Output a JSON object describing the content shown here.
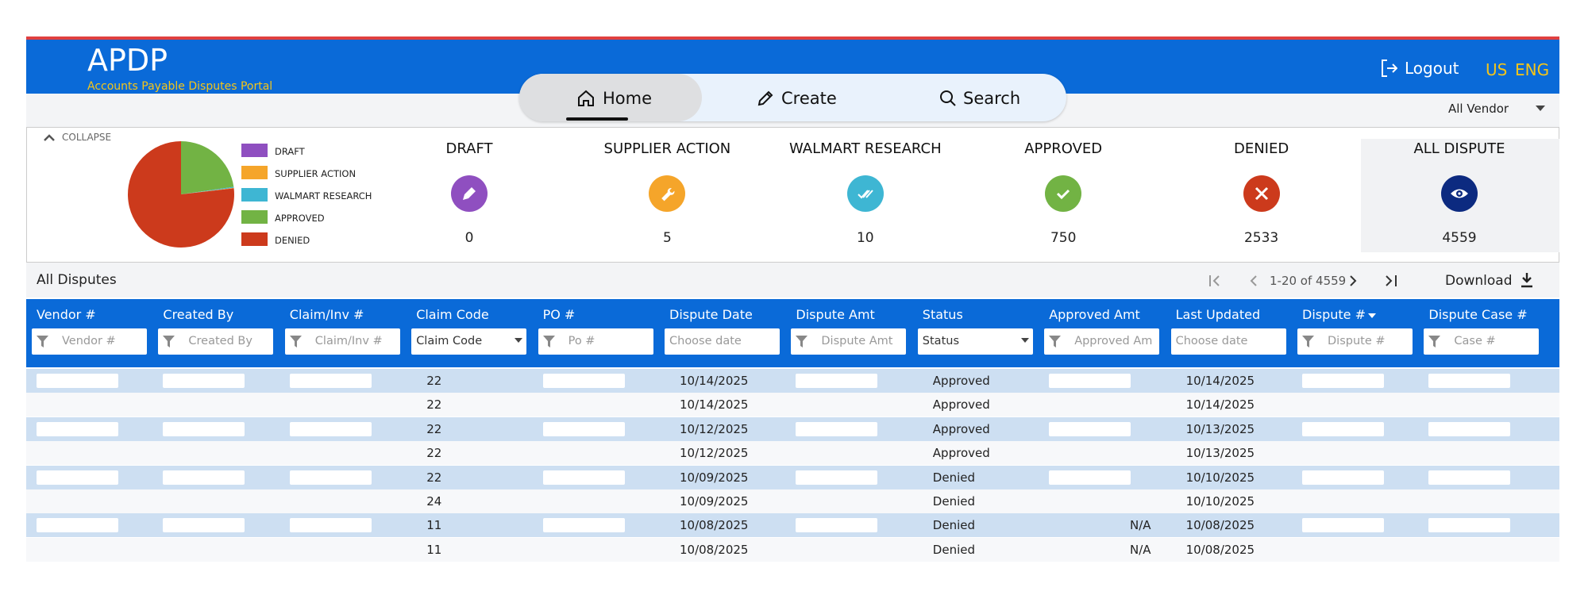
{
  "header": {
    "title": "APDP",
    "subtitle": "Accounts Payable Disputes Portal",
    "logout": "Logout",
    "region": "US",
    "language": "ENG"
  },
  "nav": [
    "Home",
    "Create",
    "Search"
  ],
  "vendor_select": "All Vendor",
  "summary": {
    "collapse": "COLLAPSE",
    "statuses": [
      {
        "label": "DRAFT",
        "count": 0,
        "color": "#8f4fc0"
      },
      {
        "label": "SUPPLIER ACTION",
        "count": 5,
        "color": "#f5a52a"
      },
      {
        "label": "WALMART RESEARCH",
        "count": 10,
        "color": "#3eb6d3"
      },
      {
        "label": "APPROVED",
        "count": 750,
        "color": "#72b344"
      },
      {
        "label": "DENIED",
        "count": 2533,
        "color": "#cc3a1c"
      },
      {
        "label": "ALL DISPUTE",
        "count": 4559,
        "color": "#0c2a80"
      }
    ]
  },
  "table": {
    "title": "All Disputes",
    "pagination": "1-20 of 4559",
    "download": "Download",
    "columns": [
      {
        "label": "Vendor #",
        "placeholder": "Vendor #"
      },
      {
        "label": "Created By",
        "placeholder": "Created By"
      },
      {
        "label": "Claim/Inv #",
        "placeholder": "Claim/Inv #"
      },
      {
        "label": "Claim Code",
        "placeholder": "Claim Code"
      },
      {
        "label": "PO #",
        "placeholder": "Po #"
      },
      {
        "label": "Dispute Date",
        "placeholder": "Choose date"
      },
      {
        "label": "Dispute Amt",
        "placeholder": "Dispute Amt"
      },
      {
        "label": "Status",
        "placeholder": "Status"
      },
      {
        "label": "Approved Amt",
        "placeholder": "Approved Am"
      },
      {
        "label": "Last Updated",
        "placeholder": "Choose date"
      },
      {
        "label": "Dispute #",
        "placeholder": "Dispute #"
      },
      {
        "label": "Dispute Case #",
        "placeholder": "Case #"
      }
    ],
    "rows": [
      [
        null,
        null,
        null,
        "22",
        null,
        "10/14/2025",
        null,
        "Approved",
        null,
        "10/14/2025",
        null,
        null
      ],
      [
        null,
        null,
        null,
        "22",
        null,
        "10/14/2025",
        null,
        "Approved",
        null,
        "10/14/2025",
        null,
        null
      ],
      [
        null,
        null,
        null,
        "22",
        null,
        "10/12/2025",
        null,
        "Approved",
        null,
        "10/13/2025",
        null,
        null
      ],
      [
        null,
        null,
        null,
        "22",
        null,
        "10/12/2025",
        null,
        "Approved",
        null,
        "10/13/2025",
        null,
        null
      ],
      [
        null,
        null,
        null,
        "22",
        null,
        "10/09/2025",
        null,
        "Denied",
        null,
        "10/10/2025",
        null,
        null
      ],
      [
        null,
        null,
        null,
        "24",
        null,
        "10/09/2025",
        null,
        "Denied",
        null,
        "10/10/2025",
        null,
        null
      ],
      [
        null,
        null,
        null,
        "11",
        null,
        "10/08/2025",
        null,
        "Denied",
        "N/A",
        "10/08/2025",
        null,
        null
      ],
      [
        null,
        null,
        null,
        "11",
        null,
        "10/08/2025",
        null,
        "Denied",
        "N/A",
        "10/08/2025",
        null,
        null
      ]
    ]
  }
}
